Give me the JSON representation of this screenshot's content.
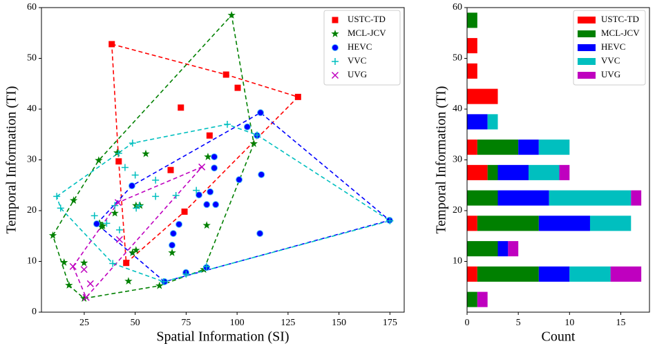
{
  "chart_data": [
    {
      "type": "scatter",
      "xlabel": "Spatial Information (SI)",
      "ylabel": "Temporal Information (TI)",
      "xlim": [
        4,
        182
      ],
      "ylim": [
        0,
        60
      ],
      "xticks": [
        25,
        50,
        75,
        100,
        125,
        150,
        175
      ],
      "yticks": [
        0,
        10,
        20,
        30,
        40,
        50,
        60
      ],
      "legend": "upper right",
      "hull": true,
      "series": [
        {
          "name": "USTC-TD",
          "color": "#ff0000",
          "marker": "square",
          "x": [
            38.5,
            94.6,
            100.3,
            129.9,
            72.4,
            86.5,
            41.9,
            67.4,
            74.2,
            45.6
          ],
          "values": [
            52.8,
            46.8,
            44.2,
            42.4,
            40.3,
            34.8,
            29.7,
            28.0,
            19.8,
            9.7
          ]
        },
        {
          "name": "MCL-JCV",
          "color": "#008000",
          "marker": "star",
          "x": [
            97.3,
            9.6,
            32.1,
            19.8,
            15.1,
            17.5,
            24.9,
            24.9,
            41.2,
            55.2,
            85.7,
            108.2,
            34.1,
            50.4,
            52.4,
            48.7,
            50.4,
            46.7,
            61.9,
            68.1,
            85.1,
            83.7,
            32.5,
            33.5,
            40.0
          ],
          "values": [
            58.5,
            15.1,
            29.9,
            22.0,
            9.8,
            5.3,
            9.7,
            2.7,
            31.4,
            31.2,
            30.6,
            33.2,
            17.0,
            21.0,
            21.0,
            11.7,
            12.2,
            6.1,
            5.2,
            11.7,
            17.1,
            8.4,
            17.5,
            16.8,
            19.5
          ]
        },
        {
          "name": "HEVC",
          "color": "#0000ff",
          "marker": "circle",
          "x": [
            111.5,
            105.0,
            48.4,
            88.8,
            109.8,
            88.8,
            86.8,
            81.3,
            85.1,
            89.5,
            101.0,
            111.9,
            71.5,
            68.7,
            68.1,
            111.2,
            174.8,
            31.1,
            64.4,
            74.9,
            85.0
          ],
          "values": [
            39.3,
            36.5,
            24.9,
            30.6,
            34.8,
            28.4,
            23.7,
            23.1,
            21.2,
            21.2,
            26.1,
            27.1,
            17.3,
            15.5,
            13.2,
            15.5,
            18.1,
            17.4,
            6.0,
            7.8,
            8.8
          ]
        },
        {
          "name": "VVC",
          "color": "#00bfbf",
          "marker": "plus",
          "x": [
            95.2,
            48.7,
            109.8,
            41.9,
            45.0,
            50.0,
            60.0,
            11.5,
            13.4,
            50.5,
            60.0,
            52.0,
            40.0,
            70.0,
            80.0,
            42.3,
            175.0,
            30.0,
            36.0,
            39.0,
            64.0,
            75.0,
            85.0
          ],
          "values": [
            37.0,
            33.3,
            34.9,
            31.3,
            28.5,
            27.0,
            26.0,
            22.8,
            20.5,
            20.5,
            22.8,
            21.0,
            21.0,
            23.0,
            24.0,
            16.2,
            18.0,
            19.0,
            17.5,
            9.6,
            6.0,
            7.5,
            9.0
          ]
        },
        {
          "name": "UVG",
          "color": "#bf00bf",
          "marker": "x",
          "x": [
            25.9,
            19.5,
            24.9,
            28.0,
            42.3,
            41.6,
            82.7
          ],
          "values": [
            2.9,
            9.0,
            8.4,
            5.6,
            14.3,
            21.6,
            28.6
          ]
        }
      ]
    },
    {
      "type": "histogram",
      "xlabel": "Count",
      "ylabel": "Temporal Information (TI)",
      "xlim": [
        0,
        17.8
      ],
      "ylim": [
        0,
        60
      ],
      "xticks": [
        0,
        5,
        10,
        15
      ],
      "yticks": [
        10,
        20,
        30,
        40,
        50,
        60
      ],
      "legend": "upper right",
      "bins": [
        0,
        5,
        10,
        15,
        20,
        25,
        30,
        35,
        40,
        45,
        50,
        55,
        60
      ],
      "series": [
        {
          "name": "USTC-TD",
          "color": "#ff0000",
          "values": [
            0,
            1,
            0,
            1,
            0,
            2,
            1,
            0,
            3,
            1,
            1,
            0
          ]
        },
        {
          "name": "MCL-JCV",
          "color": "#008000",
          "values": [
            1,
            6,
            3,
            6,
            3,
            1,
            4,
            0,
            0,
            0,
            0,
            1
          ]
        },
        {
          "name": "HEVC",
          "color": "#0000ff",
          "values": [
            0,
            3,
            1,
            5,
            5,
            3,
            2,
            2,
            0,
            0,
            0,
            0
          ]
        },
        {
          "name": "VVC",
          "color": "#00bfbf",
          "values": [
            0,
            4,
            0,
            4,
            8,
            3,
            3,
            1,
            0,
            0,
            0,
            0
          ]
        },
        {
          "name": "UVG",
          "color": "#bf00bf",
          "values": [
            1,
            3,
            1,
            0,
            1,
            1,
            0,
            0,
            0,
            0,
            0,
            0
          ]
        }
      ]
    }
  ]
}
